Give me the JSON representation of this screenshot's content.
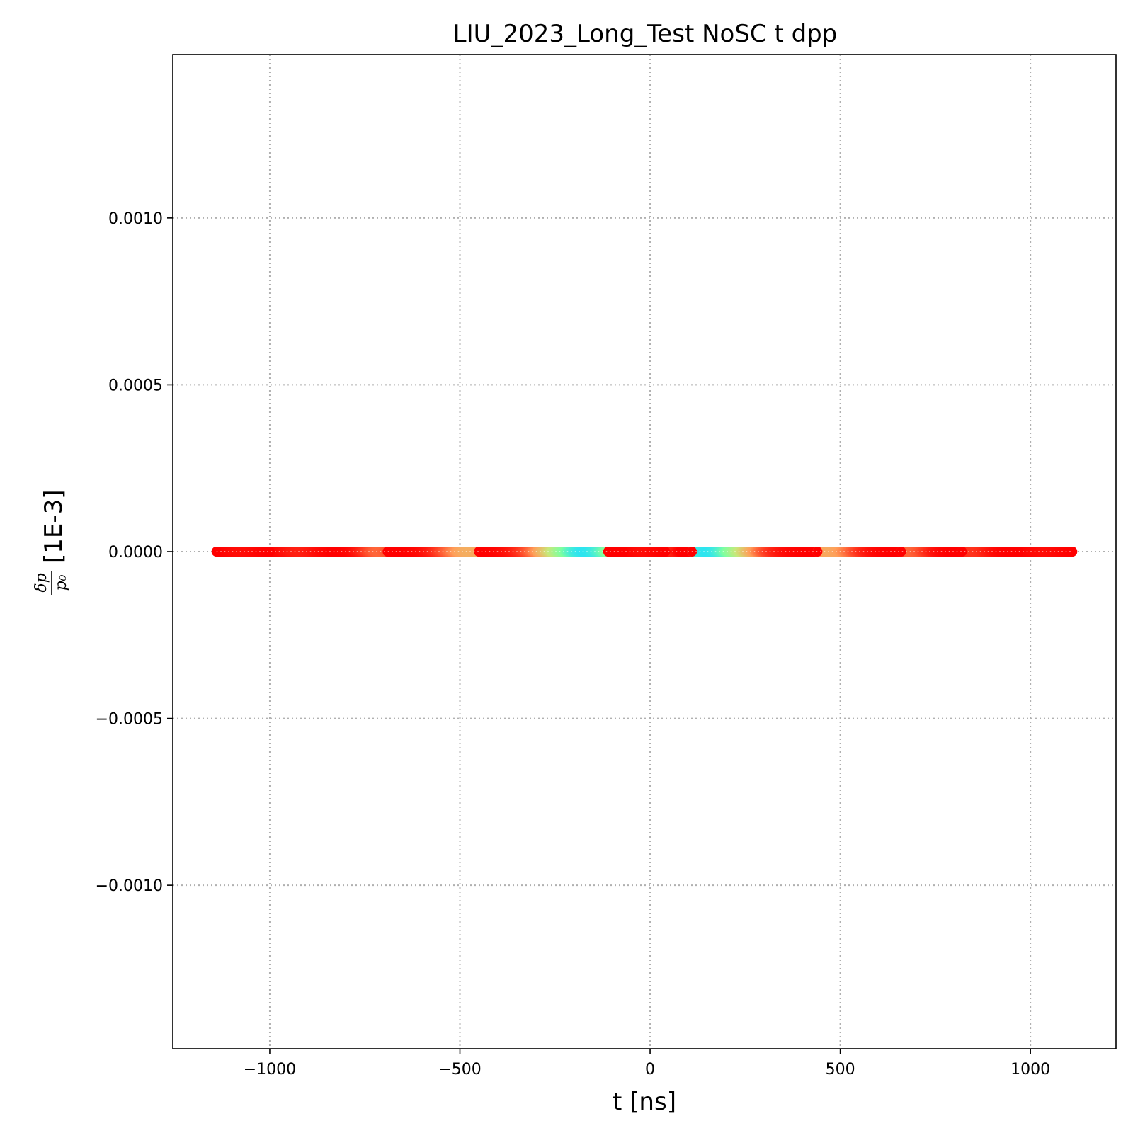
{
  "chart_data": {
    "type": "scatter",
    "title": "LIU_2023_Long_Test NoSC t dpp",
    "xlabel": "t [ns]",
    "ylabel_fraction": {
      "numerator": "δp",
      "denominator": "p₀"
    },
    "ylabel_unit": "[1E-3]",
    "xlim": [
      -1255,
      1225
    ],
    "ylim": [
      -0.00149,
      0.00149
    ],
    "xticks": [
      -1000,
      -500,
      0,
      500,
      1000
    ],
    "xtick_labels": [
      "−1000",
      "−500",
      "0",
      "500",
      "1000"
    ],
    "yticks": [
      0.001,
      0.0005,
      0.0,
      -0.0005,
      -0.001
    ],
    "ytick_labels": [
      "0.0010",
      "0.0005",
      "0.0000",
      "−0.0005",
      "−0.0010"
    ],
    "grid": true,
    "colormap": "rainbow (color = local particle density)",
    "color_stops": [
      "#ff0000",
      "#ff9f5a",
      "#c8e87a",
      "#7fffa0",
      "#1ee0ff"
    ],
    "segments": [
      {
        "x_start": -1140,
        "x_end": -1000,
        "dpp": 0.0,
        "density_peak": 0.02,
        "peak_at": 0.5
      },
      {
        "x_start": -1000,
        "x_end": -840,
        "dpp": 0.0,
        "density_peak": 0.05,
        "peak_at": 0.5
      },
      {
        "x_start": -840,
        "x_end": -690,
        "dpp": 0.0,
        "density_peak": 0.16,
        "peak_at": 0.85
      },
      {
        "x_start": -690,
        "x_end": -450,
        "dpp": 0.0,
        "density_peak": 0.3,
        "peak_at": 0.9
      },
      {
        "x_start": -450,
        "x_end": -110,
        "dpp": 0.0,
        "density_peak": 0.96,
        "peak_at": 0.82
      },
      {
        "x_start": -110,
        "x_end": -70,
        "dpp": 0.0,
        "density_peak": 0.0,
        "peak_at": 0.5
      },
      {
        "x_start": -70,
        "x_end": 40,
        "dpp": 0.0,
        "density_peak": 0.02,
        "peak_at": 0.5
      },
      {
        "x_start": 40,
        "x_end": 80,
        "dpp": 0.0,
        "density_peak": 0.05,
        "peak_at": 0.5
      },
      {
        "x_start": 80,
        "x_end": 110,
        "dpp": 0.0,
        "density_peak": 0.0,
        "peak_at": 0.5
      },
      {
        "x_start": 110,
        "x_end": 440,
        "dpp": 0.0,
        "density_peak": 0.96,
        "peak_at": 0.12
      },
      {
        "x_start": 440,
        "x_end": 660,
        "dpp": 0.0,
        "density_peak": 0.28,
        "peak_at": 0.15
      },
      {
        "x_start": 660,
        "x_end": 820,
        "dpp": 0.0,
        "density_peak": 0.16,
        "peak_at": 0.15
      },
      {
        "x_start": 820,
        "x_end": 970,
        "dpp": 0.0,
        "density_peak": 0.08,
        "peak_at": 0.2
      },
      {
        "x_start": 970,
        "x_end": 1110,
        "dpp": 0.0,
        "density_peak": 0.02,
        "peak_at": 0.5
      }
    ]
  }
}
